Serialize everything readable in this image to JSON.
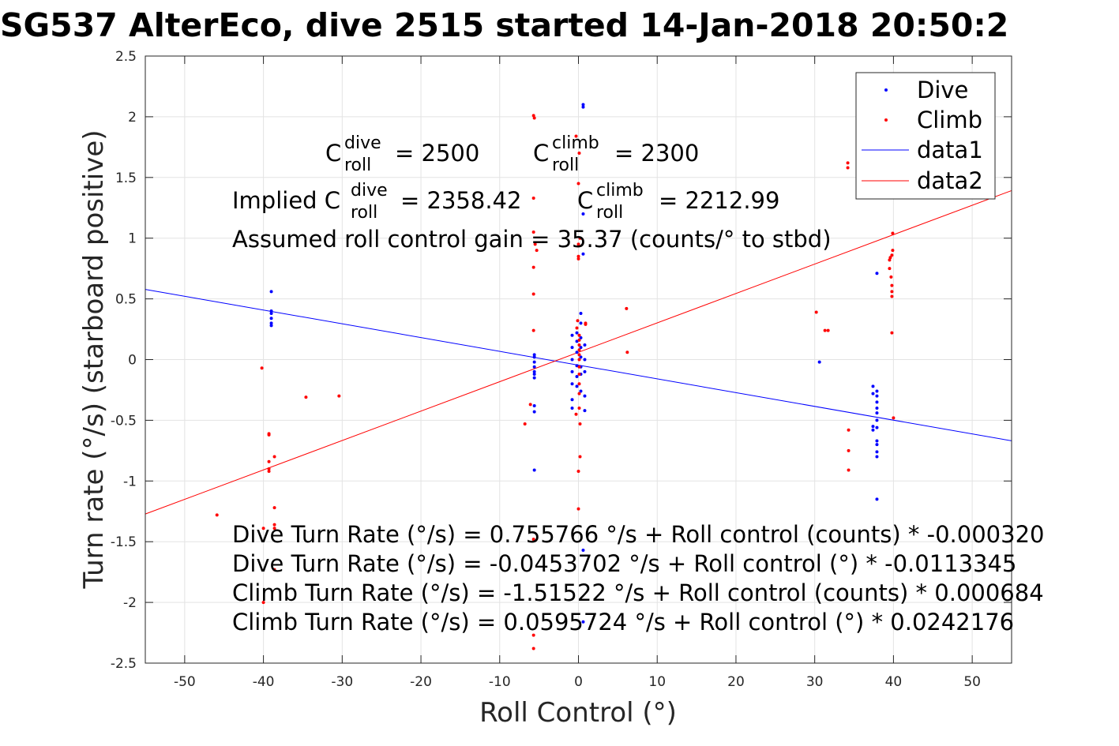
{
  "chart_data": {
    "type": "scatter",
    "title": "SG537 AlterEco, dive 2515 started 14-Jan-2018 20:50:2",
    "xlabel": "Roll Control (°)",
    "ylabel": "Turn rate (°/s) (starboard positive)",
    "xlim": [
      -55,
      55
    ],
    "ylim": [
      -2.5,
      2.5
    ],
    "xticks": [
      -50,
      -40,
      -30,
      -20,
      -10,
      0,
      10,
      20,
      30,
      40,
      50
    ],
    "yticks": [
      -2.5,
      -2,
      -1.5,
      -1,
      -0.5,
      0,
      0.5,
      1,
      1.5,
      2,
      2.5
    ],
    "grid": true,
    "legend_position": "top-right",
    "series": [
      {
        "name": "Dive",
        "kind": "points",
        "color": "#0000ff",
        "points": [
          [
            -39,
            0.56
          ],
          [
            -39,
            0.4
          ],
          [
            -39,
            0.38
          ],
          [
            -39,
            0.34
          ],
          [
            -39,
            0.3
          ],
          [
            -39,
            0.28
          ],
          [
            -5.6,
            0.04
          ],
          [
            -5.6,
            0.02
          ],
          [
            -5.6,
            -0.02
          ],
          [
            -5.6,
            -0.06
          ],
          [
            -5.6,
            -0.1
          ],
          [
            -5.6,
            -0.12
          ],
          [
            -5.6,
            -0.15
          ],
          [
            -5.6,
            -0.38
          ],
          [
            -5.6,
            -0.43
          ],
          [
            -5.6,
            -0.91
          ],
          [
            -0.8,
            0.2
          ],
          [
            -0.8,
            0.1
          ],
          [
            -0.8,
            0.0
          ],
          [
            -0.8,
            -0.1
          ],
          [
            -0.8,
            -0.2
          ],
          [
            -0.8,
            -0.33
          ],
          [
            -0.8,
            -0.4
          ],
          [
            -0.2,
            0.22
          ],
          [
            -0.2,
            0.15
          ],
          [
            -0.2,
            0.06
          ],
          [
            -0.2,
            -0.05
          ],
          [
            -0.2,
            -0.14
          ],
          [
            -0.2,
            -0.22
          ],
          [
            0.3,
            0.38
          ],
          [
            0.3,
            0.3
          ],
          [
            0.3,
            0.18
          ],
          [
            0.3,
            0.1
          ],
          [
            0.3,
            0.02
          ],
          [
            0.3,
            -0.06
          ],
          [
            0.3,
            -0.12
          ],
          [
            0.3,
            -0.26
          ],
          [
            0.8,
            0.12
          ],
          [
            0.8,
            0.0
          ],
          [
            0.8,
            -0.1
          ],
          [
            0.8,
            -0.3
          ],
          [
            0.8,
            -0.42
          ],
          [
            0.6,
            2.1
          ],
          [
            0.6,
            2.08
          ],
          [
            0.6,
            1.2
          ],
          [
            0.6,
            0.87
          ],
          [
            0.6,
            -1.57
          ],
          [
            0.6,
            -2.16
          ],
          [
            30.6,
            -0.02
          ],
          [
            37.4,
            -0.22
          ],
          [
            37.4,
            -0.28
          ],
          [
            37.4,
            -0.55
          ],
          [
            37.4,
            -0.58
          ],
          [
            37.9,
            -0.26
          ],
          [
            37.9,
            -0.3
          ],
          [
            37.9,
            -0.35
          ],
          [
            37.9,
            -0.4
          ],
          [
            37.9,
            -0.44
          ],
          [
            37.9,
            -0.5
          ],
          [
            37.9,
            -0.56
          ],
          [
            37.9,
            -0.67
          ],
          [
            37.9,
            -0.7
          ],
          [
            37.9,
            -0.76
          ],
          [
            37.9,
            -0.8
          ],
          [
            37.9,
            0.71
          ],
          [
            37.9,
            -1.15
          ]
        ]
      },
      {
        "name": "Climb",
        "kind": "points",
        "color": "#ff0000",
        "points": [
          [
            -45.9,
            -1.28
          ],
          [
            -40.2,
            -0.07
          ],
          [
            -39.3,
            -0.61
          ],
          [
            -39.3,
            -0.62
          ],
          [
            -39.3,
            -0.84
          ],
          [
            -39.3,
            -0.9
          ],
          [
            -39.3,
            -0.92
          ],
          [
            -38.6,
            -0.8
          ],
          [
            -38.6,
            -1.22
          ],
          [
            -38.6,
            -1.36
          ],
          [
            -38.6,
            -1.39
          ],
          [
            -38.6,
            -1.73
          ],
          [
            -40.0,
            -1.39
          ],
          [
            -40.0,
            -2.0
          ],
          [
            -34.6,
            -0.31
          ],
          [
            -30.4,
            -0.3
          ],
          [
            -6.8,
            -0.53
          ],
          [
            -6.1,
            -0.37
          ],
          [
            -5.7,
            2.01
          ],
          [
            -5.6,
            1.99
          ],
          [
            -5.7,
            1.33
          ],
          [
            -5.7,
            1.05
          ],
          [
            -5.5,
            0.95
          ],
          [
            -5.7,
            0.76
          ],
          [
            -5.7,
            0.54
          ],
          [
            -5.7,
            0.24
          ],
          [
            -5.7,
            -1.48
          ],
          [
            -5.7,
            -2.27
          ],
          [
            -5.7,
            -2.38
          ],
          [
            -5.3,
            0.9
          ],
          [
            -0.3,
            1.84
          ],
          [
            0.0,
            1.45
          ],
          [
            0.1,
            1.7
          ],
          [
            0.2,
            1.0
          ],
          [
            0.0,
            0.95
          ],
          [
            0.0,
            0.85
          ],
          [
            0.0,
            0.83
          ],
          [
            0.9,
            0.3
          ],
          [
            0.9,
            0.29
          ],
          [
            -0.1,
            0.32
          ],
          [
            -0.2,
            0.26
          ],
          [
            0.1,
            0.2
          ],
          [
            0.1,
            0.16
          ],
          [
            0.1,
            0.12
          ],
          [
            0.1,
            0.08
          ],
          [
            0.1,
            0.04
          ],
          [
            0.1,
            0.0
          ],
          [
            0.1,
            -0.06
          ],
          [
            0.1,
            -0.12
          ],
          [
            0.1,
            -0.2
          ],
          [
            0.1,
            -0.28
          ],
          [
            0.1,
            -0.4
          ],
          [
            -0.3,
            -0.45
          ],
          [
            0.2,
            -0.53
          ],
          [
            0.2,
            -0.8
          ],
          [
            0.0,
            -0.92
          ],
          [
            0.0,
            -1.23
          ],
          [
            6.1,
            0.42
          ],
          [
            6.2,
            0.06
          ],
          [
            30.2,
            0.39
          ],
          [
            31.3,
            0.24
          ],
          [
            31.7,
            0.24
          ],
          [
            34.2,
            1.58
          ],
          [
            34.2,
            1.62
          ],
          [
            34.3,
            -0.58
          ],
          [
            34.3,
            -0.75
          ],
          [
            34.3,
            -0.91
          ],
          [
            39.5,
            0.82
          ],
          [
            39.5,
            0.75
          ],
          [
            39.6,
            0.84
          ],
          [
            39.8,
            0.86
          ],
          [
            39.9,
            1.04
          ],
          [
            39.9,
            0.9
          ],
          [
            39.7,
            0.68
          ],
          [
            39.8,
            0.61
          ],
          [
            39.8,
            0.56
          ],
          [
            39.8,
            0.52
          ],
          [
            39.8,
            0.22
          ],
          [
            40.0,
            -0.48
          ]
        ]
      },
      {
        "name": "data1",
        "kind": "line",
        "color": "#0000ff",
        "x": [
          -55,
          55
        ],
        "y": [
          0.578,
          -0.669
        ]
      },
      {
        "name": "data2",
        "kind": "line",
        "color": "#ff0000",
        "x": [
          -55,
          55
        ],
        "y": [
          -1.272,
          1.392
        ]
      }
    ],
    "annotations": {
      "c_dive": {
        "base": "C",
        "sup": "dive",
        "sub": "roll",
        "value": "= 2500"
      },
      "c_climb": {
        "base": "C",
        "sup": "climb",
        "sub": "roll",
        "value": "= 2300"
      },
      "implied_dive": {
        "prefix": "Implied C",
        "sup": "dive",
        "sub": "roll",
        "value": "= 2358.42"
      },
      "implied_climb": {
        "base": "C",
        "sup": "climb",
        "sub": "roll",
        "value": "= 2212.99"
      },
      "gain": "Assumed roll control gain = 35.37 (counts/° to stbd)",
      "equations": [
        "Dive Turn Rate (°/s) = 0.755766 °/s + Roll control (counts) * -0.000320",
        "Dive Turn Rate (°/s) = -0.0453702 °/s + Roll control (°) * -0.0113345",
        "Climb Turn Rate (°/s) = -1.51522 °/s + Roll control (counts) * 0.000684",
        "Climb Turn Rate (°/s) = 0.0595724 °/s + Roll control (°) * 0.0242176"
      ]
    }
  }
}
